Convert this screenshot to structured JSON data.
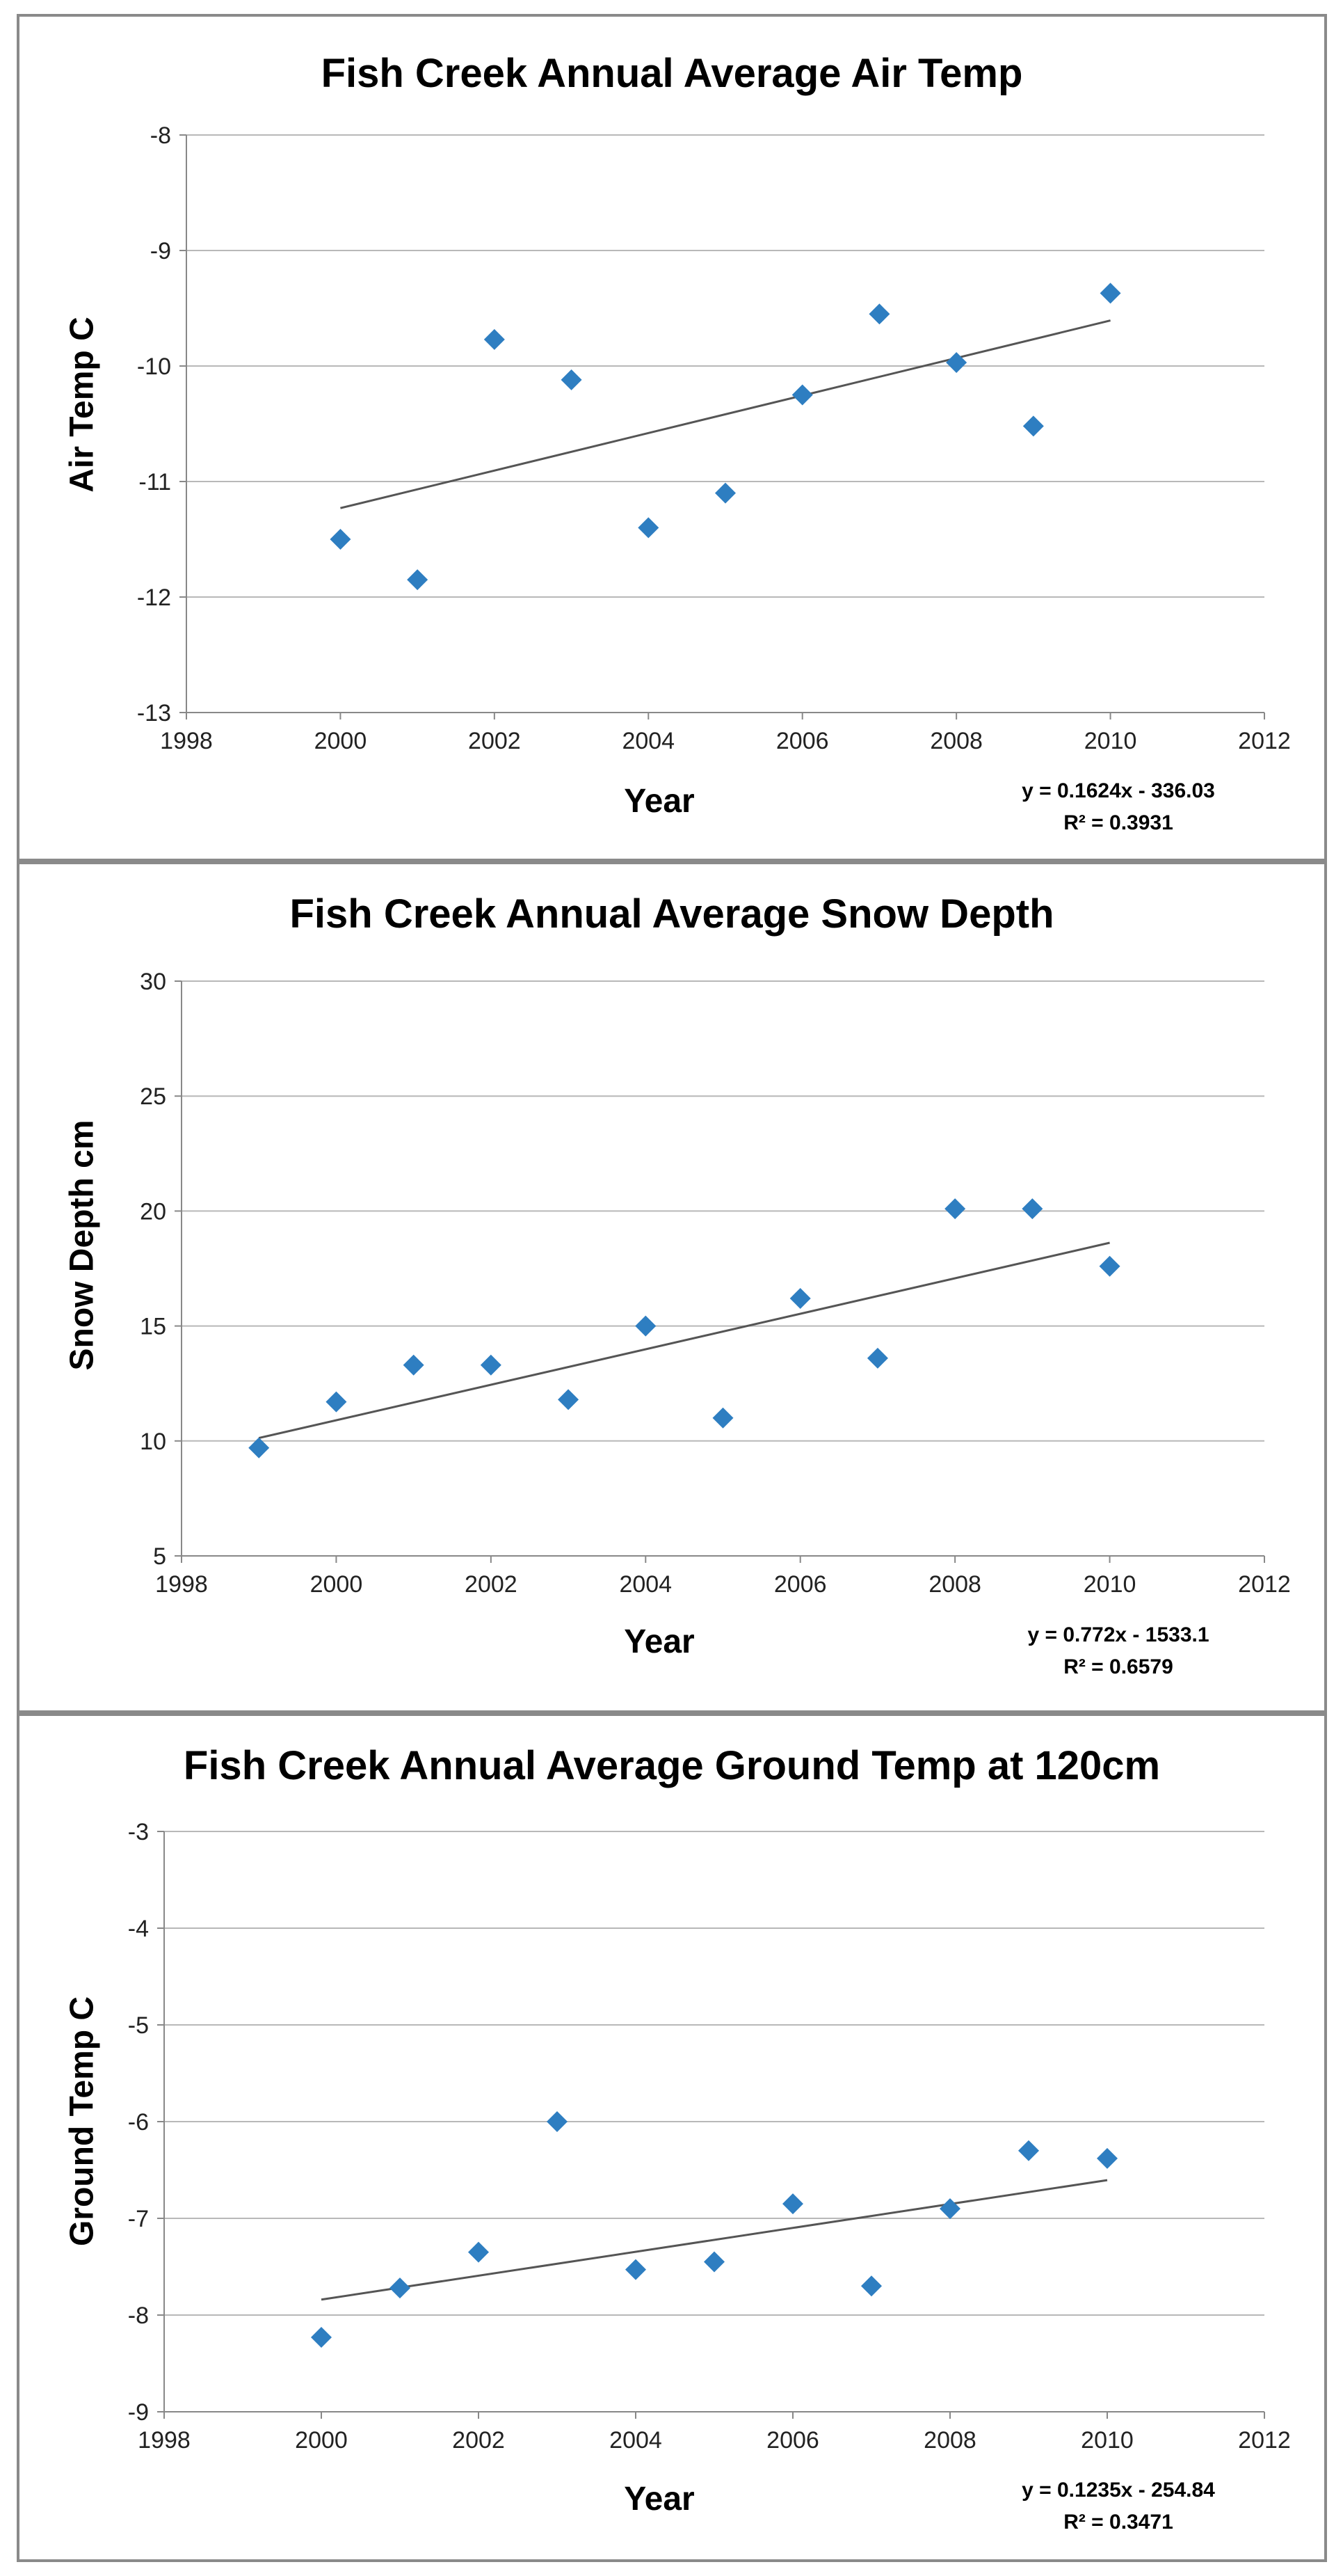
{
  "chart_data": [
    {
      "type": "scatter",
      "title": "Fish Creek Annual Average Air Temp",
      "xlabel": "Year",
      "ylabel": "Air Temp  C",
      "xlim": [
        1998,
        2012
      ],
      "ylim": [
        -13,
        -8
      ],
      "xticks": [
        1998,
        2000,
        2002,
        2004,
        2006,
        2008,
        2010,
        2012
      ],
      "yticks": [
        -13,
        -12,
        -11,
        -10,
        -9,
        -8
      ],
      "series": [
        {
          "name": "Air Temp",
          "color": "#2E7EC1",
          "x": [
            2000,
            2001,
            2002,
            2003,
            2004,
            2005,
            2006,
            2007,
            2008,
            2009,
            2010
          ],
          "y": [
            -11.5,
            -11.85,
            -9.77,
            -10.12,
            -11.4,
            -11.1,
            -10.25,
            -9.55,
            -9.97,
            -10.52,
            -9.37
          ]
        }
      ],
      "trendline": {
        "x": [
          2000,
          2010
        ],
        "slope": 0.1624,
        "intercept": -336.03
      },
      "equation": "y = 0.1624x - 336.03",
      "r_squared": "R² = 0.3931"
    },
    {
      "type": "scatter",
      "title": "Fish Creek Annual Average Snow Depth",
      "xlabel": "Year",
      "ylabel": "Snow Depth cm",
      "xlim": [
        1998,
        2012
      ],
      "ylim": [
        5,
        30
      ],
      "xticks": [
        1998,
        2000,
        2002,
        2004,
        2006,
        2008,
        2010,
        2012
      ],
      "yticks": [
        5,
        10,
        15,
        20,
        25,
        30
      ],
      "series": [
        {
          "name": "Snow Depth",
          "color": "#2E7EC1",
          "x": [
            1999,
            2000,
            2001,
            2002,
            2003,
            2004,
            2005,
            2006,
            2007,
            2008,
            2009,
            2010
          ],
          "y": [
            9.7,
            11.7,
            13.3,
            13.3,
            11.8,
            15.0,
            11.0,
            16.2,
            13.6,
            20.1,
            20.1,
            17.6
          ]
        }
      ],
      "trendline": {
        "x": [
          1999,
          2010
        ],
        "slope": 0.772,
        "intercept": -1533.1
      },
      "equation": "y = 0.772x - 1533.1",
      "r_squared": "R² = 0.6579"
    },
    {
      "type": "scatter",
      "title": "Fish Creek Annual Average Ground Temp at 120cm",
      "xlabel": "Year",
      "ylabel": "Ground Temp  C",
      "xlim": [
        1998,
        2012
      ],
      "ylim": [
        -9,
        -3
      ],
      "xticks": [
        1998,
        2000,
        2002,
        2004,
        2006,
        2008,
        2010,
        2012
      ],
      "yticks": [
        -9,
        -8,
        -7,
        -6,
        -5,
        -4,
        -3
      ],
      "series": [
        {
          "name": "Ground Temp",
          "color": "#2E7EC1",
          "x": [
            2000,
            2001,
            2002,
            2003,
            2004,
            2005,
            2006,
            2007,
            2008,
            2009,
            2010
          ],
          "y": [
            -8.23,
            -7.72,
            -7.35,
            -6.0,
            -7.53,
            -7.45,
            -6.85,
            -7.7,
            -6.9,
            -6.3,
            -6.38
          ]
        }
      ],
      "trendline": {
        "x": [
          2000,
          2010
        ],
        "slope": 0.1235,
        "intercept": -254.84
      },
      "equation": "y = 0.1235x - 254.84",
      "r_squared": "R² = 0.3471"
    }
  ]
}
